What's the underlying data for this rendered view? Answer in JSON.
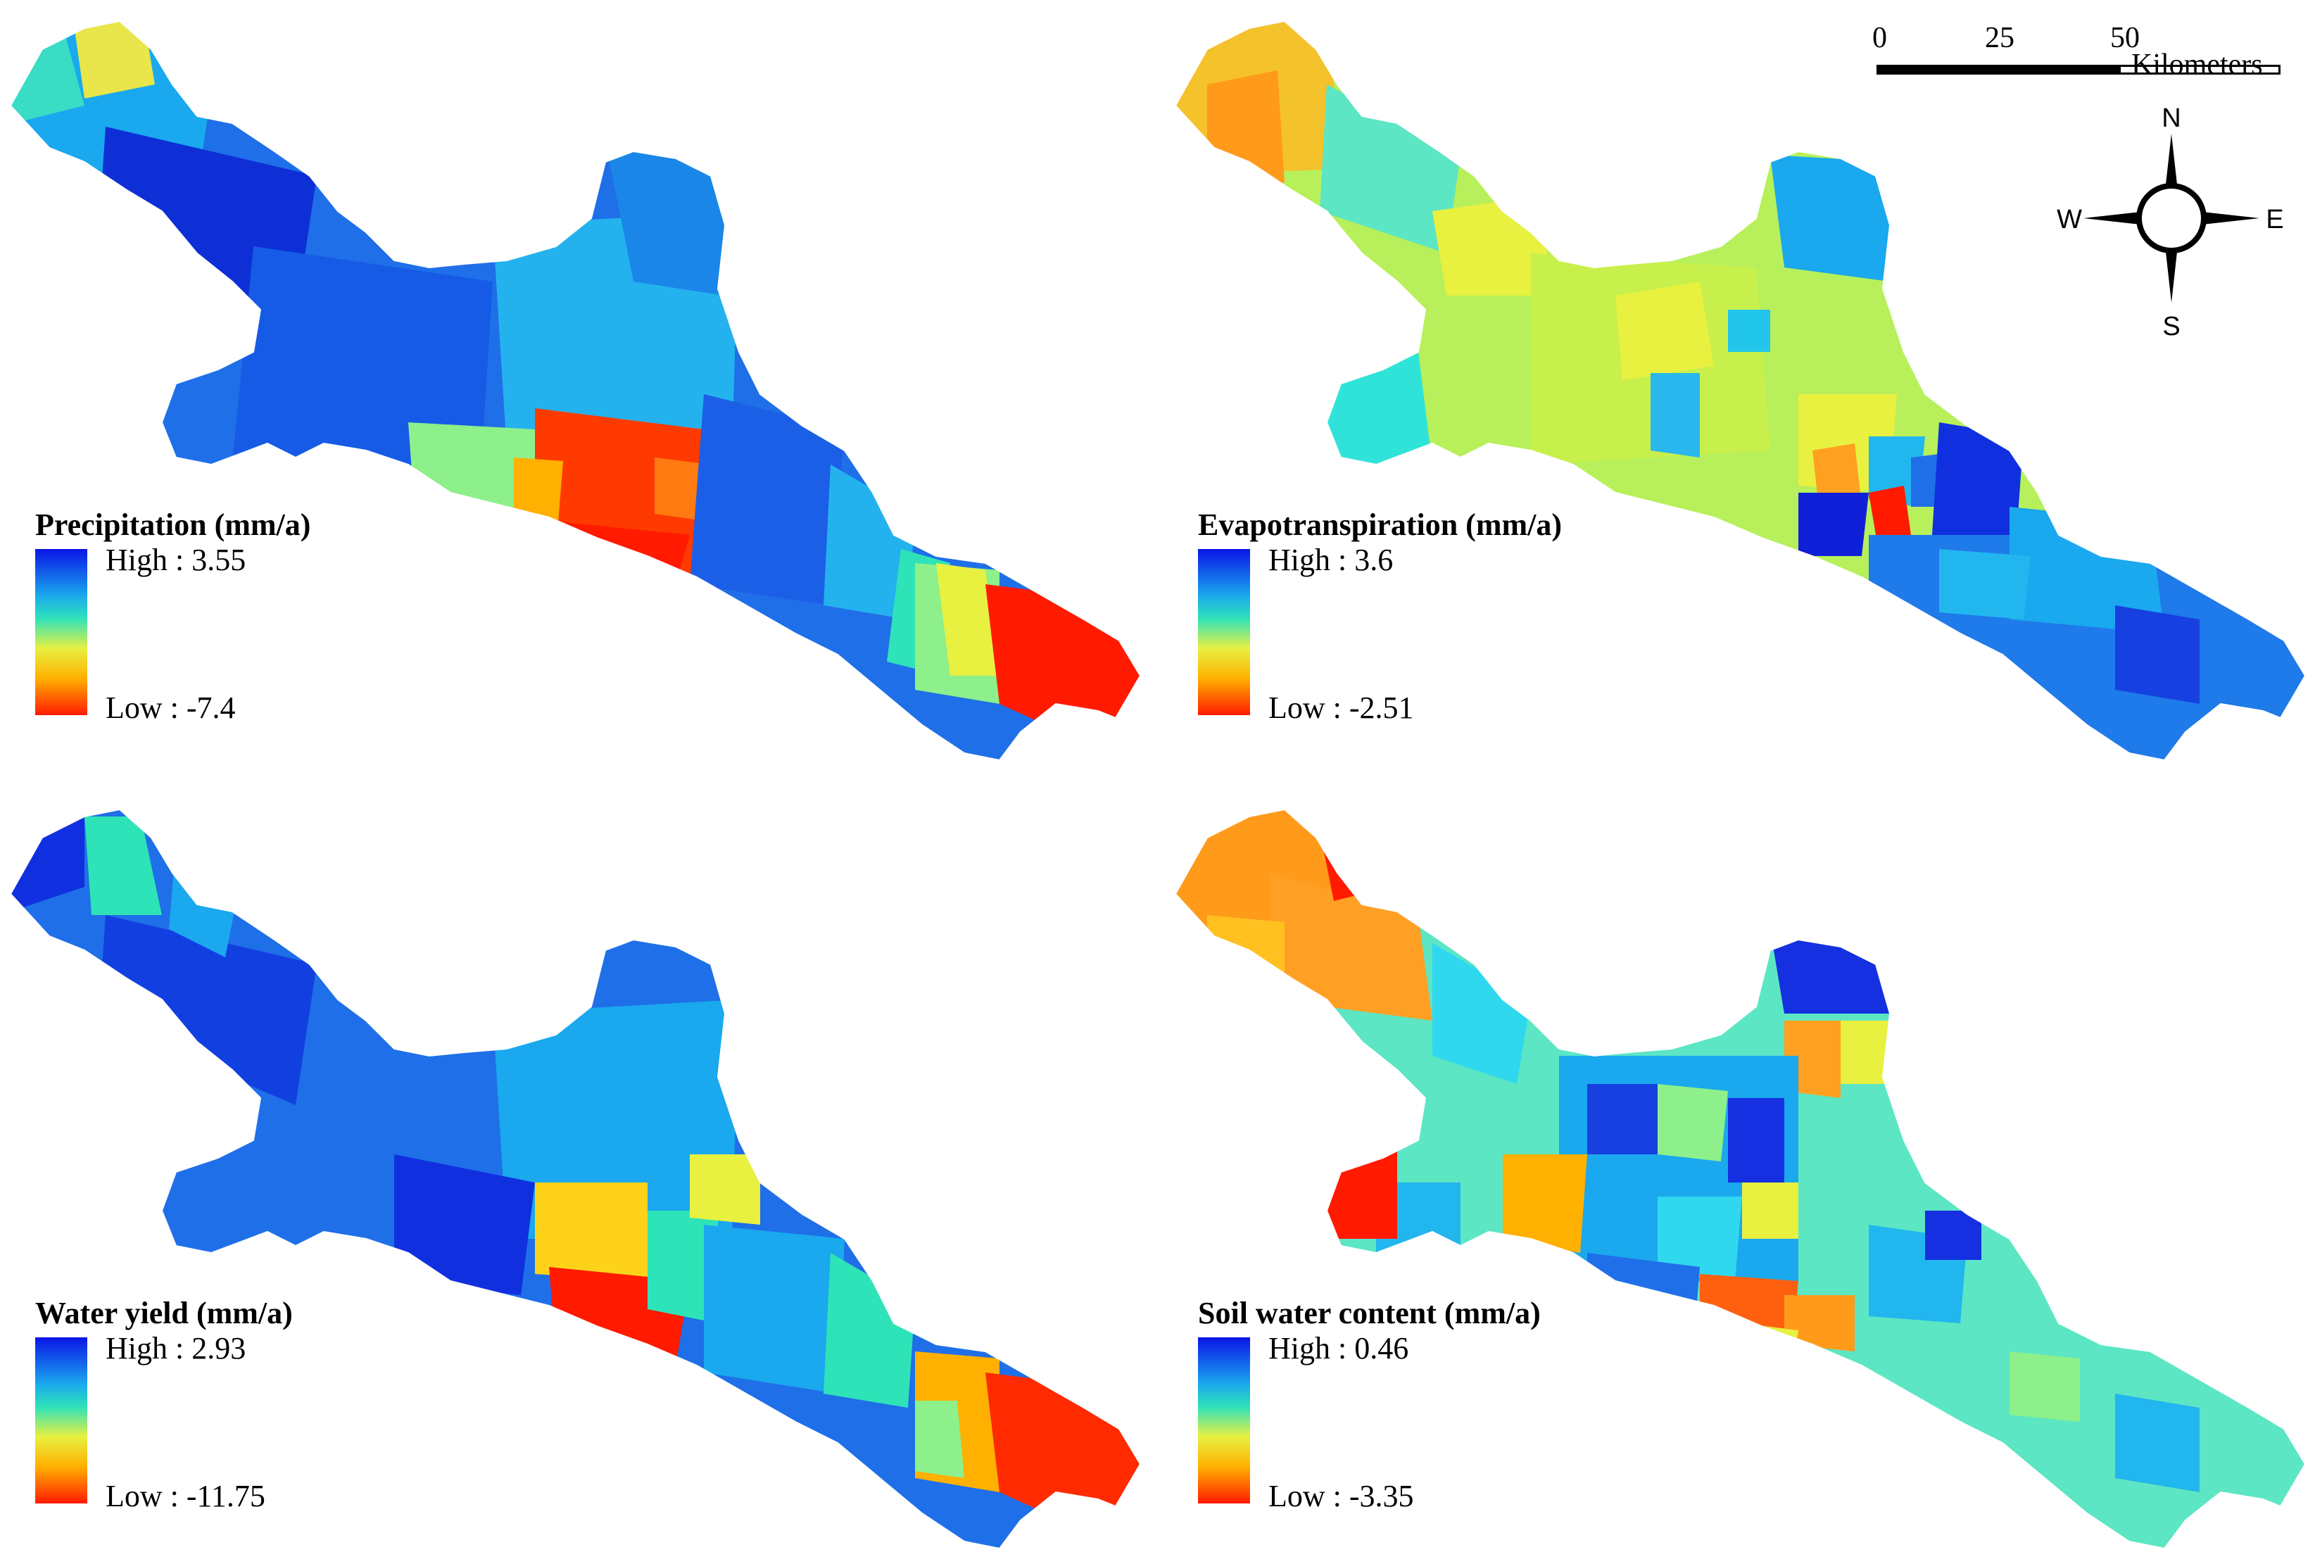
{
  "panels": [
    {
      "id": "precipitation",
      "title": "Precipitation (mm/a)",
      "high": "High : 3.55",
      "low": "Low : -7.4"
    },
    {
      "id": "evapotranspiration",
      "title": "Evapotranspiration (mm/a)",
      "high": "High : 3.6",
      "low": "Low : -2.51"
    },
    {
      "id": "water-yield",
      "title": "Water yield (mm/a)",
      "high": "High : 2.93",
      "low": "Low : -11.75"
    },
    {
      "id": "soil-water",
      "title": "Soil water content (mm/a)",
      "high": "High : 0.46",
      "low": "Low : -3.35"
    }
  ],
  "scale_bar": {
    "ticks": [
      "0",
      "25",
      "50"
    ],
    "units": "Kilometers"
  },
  "north_arrow": {
    "n": "N",
    "s": "S",
    "e": "E",
    "w": "W"
  },
  "colors": {
    "high": "#0a14e6",
    "mid": "#2fe3b8",
    "low": "#ff1a00"
  }
}
